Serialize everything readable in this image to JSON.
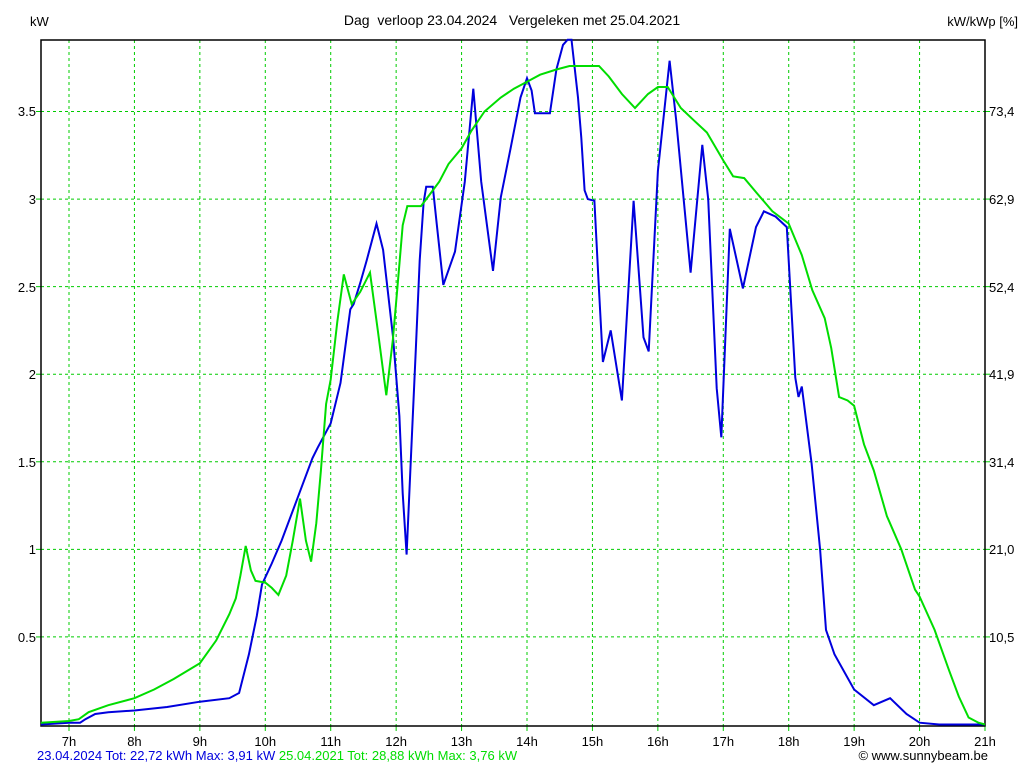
{
  "header": {
    "title": "Dag  verloop 23.04.2024   Vergeleken met 25.04.2021",
    "left_unit": "kW",
    "right_unit": "kW/kWp [%]"
  },
  "colors": {
    "series_2024": "#0000dd",
    "series_2021": "#00dd00",
    "grid": "#00cc00",
    "axis": "#000000",
    "background": "#ffffff"
  },
  "chart_data": {
    "type": "line",
    "title": "Dag  verloop 23.04.2024   Vergeleken met 25.04.2021",
    "xlabel_unit": "h",
    "ylabel_left": "kW",
    "ylabel_right": "kW/kWp [%]",
    "xlim": [
      6.57,
      21
    ],
    "ylim": [
      0,
      3.92
    ],
    "grid": "green-dashed",
    "x_ticks": [
      {
        "hour": 7,
        "label": "7h"
      },
      {
        "hour": 8,
        "label": "8h"
      },
      {
        "hour": 9,
        "label": "9h"
      },
      {
        "hour": 10,
        "label": "10h"
      },
      {
        "hour": 11,
        "label": "11h"
      },
      {
        "hour": 12,
        "label": "12h"
      },
      {
        "hour": 13,
        "label": "13h"
      },
      {
        "hour": 14,
        "label": "14h"
      },
      {
        "hour": 15,
        "label": "15h"
      },
      {
        "hour": 16,
        "label": "16h"
      },
      {
        "hour": 17,
        "label": "17h"
      },
      {
        "hour": 18,
        "label": "18h"
      },
      {
        "hour": 19,
        "label": "19h"
      },
      {
        "hour": 20,
        "label": "20h"
      },
      {
        "hour": 21,
        "label": "21h"
      }
    ],
    "y_ticks_left": [
      {
        "value": 3.5,
        "label": "3.5"
      },
      {
        "value": 3.0,
        "label": "3"
      },
      {
        "value": 2.5,
        "label": "2.5"
      },
      {
        "value": 2.0,
        "label": "2"
      },
      {
        "value": 1.5,
        "label": "1.5"
      },
      {
        "value": 1.0,
        "label": "1"
      },
      {
        "value": 0.5,
        "label": "0.5"
      }
    ],
    "y_ticks_right": [
      {
        "value": 3.5,
        "label": "73,4"
      },
      {
        "value": 3.0,
        "label": "62,9"
      },
      {
        "value": 2.5,
        "label": "52,4"
      },
      {
        "value": 2.0,
        "label": "41,9"
      },
      {
        "value": 1.5,
        "label": "31,4"
      },
      {
        "value": 1.0,
        "label": "21,0"
      },
      {
        "value": 0.5,
        "label": "10,5"
      }
    ],
    "series": [
      {
        "name": "23.04.2024",
        "color": "#0000dd",
        "total": "22,72 kWh",
        "max": "3,91 kW",
        "points": [
          [
            6.57,
            0.0
          ],
          [
            7.0,
            0.01
          ],
          [
            7.17,
            0.01
          ],
          [
            7.25,
            0.03
          ],
          [
            7.4,
            0.06
          ],
          [
            7.6,
            0.07
          ],
          [
            8.0,
            0.08
          ],
          [
            8.5,
            0.1
          ],
          [
            9.0,
            0.13
          ],
          [
            9.45,
            0.15
          ],
          [
            9.6,
            0.18
          ],
          [
            9.75,
            0.4
          ],
          [
            9.87,
            0.62
          ],
          [
            9.95,
            0.8
          ],
          [
            10.1,
            0.92
          ],
          [
            10.25,
            1.05
          ],
          [
            10.5,
            1.3
          ],
          [
            10.72,
            1.52
          ],
          [
            10.8,
            1.58
          ],
          [
            11.0,
            1.72
          ],
          [
            11.15,
            1.95
          ],
          [
            11.3,
            2.37
          ],
          [
            11.35,
            2.4
          ],
          [
            11.45,
            2.52
          ],
          [
            11.55,
            2.65
          ],
          [
            11.7,
            2.86
          ],
          [
            11.8,
            2.71
          ],
          [
            11.95,
            2.22
          ],
          [
            12.05,
            1.76
          ],
          [
            12.1,
            1.32
          ],
          [
            12.16,
            0.97
          ],
          [
            12.22,
            1.47
          ],
          [
            12.3,
            2.14
          ],
          [
            12.36,
            2.65
          ],
          [
            12.42,
            2.98
          ],
          [
            12.46,
            3.07
          ],
          [
            12.56,
            3.07
          ],
          [
            12.62,
            2.86
          ],
          [
            12.72,
            2.51
          ],
          [
            12.9,
            2.7
          ],
          [
            13.05,
            3.1
          ],
          [
            13.18,
            3.63
          ],
          [
            13.3,
            3.1
          ],
          [
            13.48,
            2.59
          ],
          [
            13.6,
            3.01
          ],
          [
            13.75,
            3.29
          ],
          [
            13.9,
            3.58
          ],
          [
            14.0,
            3.69
          ],
          [
            14.07,
            3.62
          ],
          [
            14.12,
            3.49
          ],
          [
            14.35,
            3.49
          ],
          [
            14.45,
            3.74
          ],
          [
            14.55,
            3.88
          ],
          [
            14.62,
            3.91
          ],
          [
            14.68,
            3.91
          ],
          [
            14.78,
            3.58
          ],
          [
            14.83,
            3.35
          ],
          [
            14.88,
            3.05
          ],
          [
            14.93,
            3.0
          ],
          [
            15.03,
            2.99
          ],
          [
            15.1,
            2.48
          ],
          [
            15.16,
            2.07
          ],
          [
            15.28,
            2.25
          ],
          [
            15.45,
            1.85
          ],
          [
            15.63,
            2.99
          ],
          [
            15.78,
            2.21
          ],
          [
            15.86,
            2.13
          ],
          [
            16.0,
            3.16
          ],
          [
            16.18,
            3.79
          ],
          [
            16.28,
            3.45
          ],
          [
            16.5,
            2.58
          ],
          [
            16.68,
            3.31
          ],
          [
            16.77,
            3.0
          ],
          [
            16.9,
            1.92
          ],
          [
            16.97,
            1.64
          ],
          [
            17.1,
            2.83
          ],
          [
            17.3,
            2.49
          ],
          [
            17.5,
            2.84
          ],
          [
            17.62,
            2.93
          ],
          [
            17.8,
            2.9
          ],
          [
            17.97,
            2.84
          ],
          [
            18.1,
            1.98
          ],
          [
            18.15,
            1.87
          ],
          [
            18.2,
            1.93
          ],
          [
            18.35,
            1.49
          ],
          [
            18.48,
            1.0
          ],
          [
            18.57,
            0.54
          ],
          [
            18.7,
            0.4
          ],
          [
            19.0,
            0.2
          ],
          [
            19.3,
            0.11
          ],
          [
            19.55,
            0.15
          ],
          [
            19.8,
            0.06
          ],
          [
            20.0,
            0.01
          ],
          [
            20.3,
            0.0
          ],
          [
            21.0,
            0.0
          ]
        ]
      },
      {
        "name": "25.04.2021",
        "color": "#00dd00",
        "total": "28,88 kWh",
        "max": "3,76 kW",
        "points": [
          [
            6.57,
            0.01
          ],
          [
            7.0,
            0.02
          ],
          [
            7.15,
            0.03
          ],
          [
            7.3,
            0.07
          ],
          [
            7.6,
            0.11
          ],
          [
            8.0,
            0.15
          ],
          [
            8.3,
            0.2
          ],
          [
            8.6,
            0.26
          ],
          [
            9.0,
            0.35
          ],
          [
            9.25,
            0.48
          ],
          [
            9.45,
            0.63
          ],
          [
            9.55,
            0.72
          ],
          [
            9.62,
            0.85
          ],
          [
            9.7,
            1.02
          ],
          [
            9.78,
            0.88
          ],
          [
            9.85,
            0.82
          ],
          [
            10.0,
            0.81
          ],
          [
            10.1,
            0.78
          ],
          [
            10.2,
            0.74
          ],
          [
            10.32,
            0.85
          ],
          [
            10.42,
            1.05
          ],
          [
            10.53,
            1.29
          ],
          [
            10.62,
            1.05
          ],
          [
            10.7,
            0.93
          ],
          [
            10.78,
            1.15
          ],
          [
            10.85,
            1.45
          ],
          [
            10.93,
            1.83
          ],
          [
            11.0,
            1.97
          ],
          [
            11.1,
            2.3
          ],
          [
            11.2,
            2.57
          ],
          [
            11.32,
            2.4
          ],
          [
            11.45,
            2.47
          ],
          [
            11.6,
            2.58
          ],
          [
            11.72,
            2.25
          ],
          [
            11.85,
            1.88
          ],
          [
            11.95,
            2.2
          ],
          [
            12.02,
            2.5
          ],
          [
            12.1,
            2.85
          ],
          [
            12.17,
            2.96
          ],
          [
            12.38,
            2.96
          ],
          [
            12.5,
            3.02
          ],
          [
            12.66,
            3.1
          ],
          [
            12.8,
            3.2
          ],
          [
            13.0,
            3.29
          ],
          [
            13.15,
            3.39
          ],
          [
            13.35,
            3.5
          ],
          [
            13.6,
            3.58
          ],
          [
            13.8,
            3.63
          ],
          [
            14.0,
            3.67
          ],
          [
            14.2,
            3.71
          ],
          [
            14.45,
            3.74
          ],
          [
            14.65,
            3.76
          ],
          [
            14.95,
            3.76
          ],
          [
            15.1,
            3.76
          ],
          [
            15.25,
            3.7
          ],
          [
            15.45,
            3.6
          ],
          [
            15.65,
            3.52
          ],
          [
            15.85,
            3.6
          ],
          [
            16.0,
            3.64
          ],
          [
            16.15,
            3.64
          ],
          [
            16.35,
            3.52
          ],
          [
            16.55,
            3.45
          ],
          [
            16.75,
            3.38
          ],
          [
            17.0,
            3.22
          ],
          [
            17.15,
            3.13
          ],
          [
            17.32,
            3.12
          ],
          [
            17.5,
            3.04
          ],
          [
            17.75,
            2.93
          ],
          [
            18.0,
            2.86
          ],
          [
            18.2,
            2.68
          ],
          [
            18.36,
            2.48
          ],
          [
            18.55,
            2.32
          ],
          [
            18.65,
            2.15
          ],
          [
            18.77,
            1.87
          ],
          [
            18.9,
            1.85
          ],
          [
            19.0,
            1.82
          ],
          [
            19.15,
            1.6
          ],
          [
            19.3,
            1.45
          ],
          [
            19.5,
            1.19
          ],
          [
            19.72,
            1.0
          ],
          [
            19.93,
            0.77
          ],
          [
            20.0,
            0.73
          ],
          [
            20.23,
            0.54
          ],
          [
            20.45,
            0.31
          ],
          [
            20.6,
            0.16
          ],
          [
            20.75,
            0.04
          ],
          [
            20.9,
            0.01
          ],
          [
            21.0,
            0.0
          ]
        ]
      }
    ]
  },
  "footer": {
    "stat_2024": "23.04.2024 Tot: 22,72 kWh Max: 3,91 kW",
    "stat_2021": "25.04.2021 Tot: 28,88 kWh Max: 3,76 kW",
    "copyright": "© www.sunnybeam.be"
  }
}
